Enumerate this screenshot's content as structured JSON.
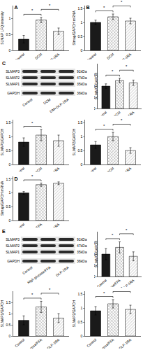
{
  "chart_data": [
    {
      "type": "bar",
      "title": "A",
      "y_label": "SLMAP LFQ intensity",
      "categories": [
        "Control",
        "DCM",
        "DM+GLP-1RA"
      ],
      "values": [
        0.35,
        0.95,
        0.6
      ],
      "errors": [
        0.12,
        0.08,
        0.1
      ],
      "colors": [
        "#1a1a1a",
        "#8c8c8c",
        "#cfcfcf"
      ],
      "ylim": [
        0,
        1.4
      ],
      "yticks": [
        0,
        0.5,
        1
      ],
      "grid": false,
      "annotations": [
        {
          "text": "*",
          "between": [
            "Control",
            "DCM"
          ]
        },
        {
          "text": "*",
          "between": [
            "DCM",
            "DM+GLP-1RA"
          ]
        }
      ]
    },
    {
      "type": "bar",
      "title": "B",
      "y_label": "Slmap/GAPDH mRNA",
      "categories": [
        "Control",
        "DCM",
        "DM+GLP-1RA"
      ],
      "values": [
        1.0,
        1.2,
        1.05
      ],
      "errors": [
        0.08,
        0.1,
        0.1
      ],
      "colors": [
        "#1a1a1a",
        "#8c8c8c",
        "#cfcfcf"
      ],
      "ylim": [
        0,
        1.6
      ],
      "yticks": [
        0,
        0.5,
        1,
        1.5
      ],
      "grid": false,
      "annotations": [
        {
          "text": "*",
          "between": [
            "Control",
            "DCM"
          ]
        },
        {
          "text": "*",
          "between": [
            "DCM",
            "DM+GLP-1RA"
          ]
        }
      ]
    },
    {
      "type": "bar",
      "y_label": "SLMAP3/GAPDH",
      "categories": [
        "Control",
        "DCM",
        "DM+GLP-1RA"
      ],
      "values": [
        1.0,
        1.25,
        1.15
      ],
      "errors": [
        0.1,
        0.1,
        0.12
      ],
      "colors": [
        "#1a1a1a",
        "#8c8c8c",
        "#cfcfcf"
      ],
      "ylim": [
        0,
        2
      ],
      "yticks": [
        0,
        0.5,
        1,
        1.5
      ],
      "grid": false,
      "annotations": [
        {
          "text": "*",
          "between": [
            "Control",
            "DCM"
          ]
        },
        {
          "text": "*",
          "between": [
            "DCM",
            "DM+GLP-1RA"
          ]
        }
      ]
    },
    {
      "type": "bar",
      "y_label": "SLMAP1/GAPDH",
      "categories": [
        "Control",
        "DCM",
        "DM+GLP-1RA"
      ],
      "values": [
        0.8,
        1.05,
        0.85
      ],
      "errors": [
        0.15,
        0.2,
        0.2
      ],
      "colors": [
        "#1a1a1a",
        "#8c8c8c",
        "#cfcfcf"
      ],
      "ylim": [
        0,
        1.6
      ],
      "yticks": [
        0,
        0.5,
        1,
        1.5
      ],
      "grid": false,
      "annotations": [
        {
          "text": "*",
          "between": [
            "Control",
            "DCM"
          ]
        }
      ]
    },
    {
      "type": "bar",
      "y_label": "SLMAP2/GAPDH",
      "categories": [
        "Control",
        "DCM",
        "DM+GLP-1RA"
      ],
      "values": [
        0.7,
        1.0,
        0.5
      ],
      "errors": [
        0.12,
        0.15,
        0.1
      ],
      "colors": [
        "#1a1a1a",
        "#8c8c8c",
        "#cfcfcf"
      ],
      "ylim": [
        0,
        1.6
      ],
      "yticks": [
        0,
        0.5,
        1,
        1.5
      ],
      "grid": false,
      "annotations": [
        {
          "text": "*",
          "between": [
            "Control",
            "DCM"
          ]
        },
        {
          "text": "*",
          "between": [
            "DCM",
            "DM+GLP-1RA"
          ]
        }
      ]
    },
    {
      "type": "bar",
      "title": "D",
      "y_label": "Slmap/GAPDH mRNA",
      "categories": [
        "Control",
        "High glucose/FFA",
        "GLP-1RA"
      ],
      "values": [
        1.0,
        1.3,
        1.35
      ],
      "errors": [
        0.05,
        0.06,
        0.05
      ],
      "colors": [
        "#1a1a1a",
        "#8c8c8c",
        "#cfcfcf"
      ],
      "ylim": [
        0,
        1.6
      ],
      "yticks": [
        0,
        0.5,
        1,
        1.5
      ],
      "grid": false,
      "annotations": [
        {
          "text": "*",
          "between": [
            "Control",
            "High glucose/FFA"
          ]
        }
      ]
    },
    {
      "type": "bar",
      "y_label": "SLMAP3/GAPDH",
      "categories": [
        "Control",
        "High glucose/FFA",
        "GLP-1RA"
      ],
      "values": [
        1.0,
        1.3,
        0.9
      ],
      "errors": [
        0.25,
        0.25,
        0.2
      ],
      "colors": [
        "#1a1a1a",
        "#8c8c8c",
        "#cfcfcf"
      ],
      "ylim": [
        0,
        2
      ],
      "yticks": [
        0,
        0.5,
        1,
        1.5
      ],
      "grid": false,
      "annotations": [
        {
          "text": "*",
          "between": [
            "Control",
            "High glucose/FFA"
          ]
        },
        {
          "text": "*",
          "between": [
            "High glucose/FFA",
            "GLP-1RA"
          ]
        }
      ]
    },
    {
      "type": "bar",
      "y_label": "SLMAP1/GAPDH",
      "categories": [
        "Control",
        "High glucose/FFA",
        "GLP-1RA"
      ],
      "values": [
        0.7,
        1.3,
        0.8
      ],
      "errors": [
        0.2,
        0.25,
        0.2
      ],
      "colors": [
        "#1a1a1a",
        "#8c8c8c",
        "#cfcfcf"
      ],
      "ylim": [
        0,
        2
      ],
      "yticks": [
        0,
        0.5,
        1,
        1.5
      ],
      "grid": false,
      "annotations": [
        {
          "text": "*",
          "between": [
            "Control",
            "High glucose/FFA"
          ]
        },
        {
          "text": "*",
          "between": [
            "High glucose/FFA",
            "GLP-1RA"
          ]
        }
      ]
    },
    {
      "type": "bar",
      "y_label": "SLMAP2/GAPDH",
      "categories": [
        "Control",
        "High glucose/FFA",
        "GLP-1RA"
      ],
      "values": [
        0.9,
        1.15,
        0.95
      ],
      "errors": [
        0.15,
        0.15,
        0.15
      ],
      "colors": [
        "#1a1a1a",
        "#8c8c8c",
        "#cfcfcf"
      ],
      "ylim": [
        0,
        1.6
      ],
      "yticks": [
        0,
        0.5,
        1,
        1.5
      ],
      "grid": false,
      "annotations": [
        {
          "text": "*",
          "between": [
            "Control",
            "High glucose/FFA"
          ]
        },
        {
          "text": "*",
          "between": [
            "High glucose/FFA",
            "GLP-1RA"
          ]
        }
      ]
    }
  ],
  "blots": [
    {
      "label": "C",
      "lanes": [
        "Control",
        "DCM",
        "DM+GLP-1RA"
      ],
      "bands": [
        {
          "name": "SLMAP3",
          "size": "91kDa"
        },
        {
          "name": "SLMAP2",
          "size": "47kDa"
        },
        {
          "name": "SLMAP1",
          "size": "35kDa"
        },
        {
          "name": "GAPDH",
          "size": "36kDa"
        }
      ]
    },
    {
      "label": "E",
      "lanes": [
        "Control",
        "High glucose/FFA",
        "GLP-1RA"
      ],
      "bands": [
        {
          "name": "SLMAP3",
          "size": "91kDa"
        },
        {
          "name": "SLMAP2",
          "size": "47kDa"
        },
        {
          "name": "SLMAP1",
          "size": "35kDa"
        },
        {
          "name": "GAPDH",
          "size": "36kDa"
        }
      ]
    }
  ]
}
